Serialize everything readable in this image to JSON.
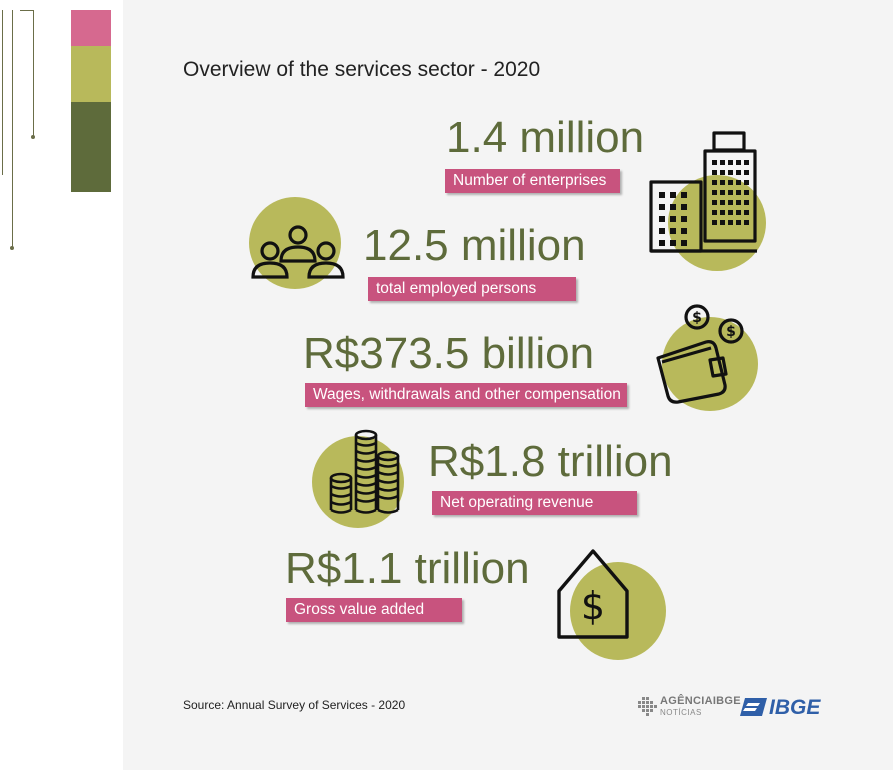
{
  "title": "Overview of the services sector - 2020",
  "colors": {
    "pink": "#c8537e",
    "olive_light": "#b8b95b",
    "olive_dark": "#5e6b3b",
    "panel": "#f4f4f4"
  },
  "stats": [
    {
      "value": "1.4 million",
      "label": "Number of enterprises",
      "icon": "buildings-icon"
    },
    {
      "value": "12.5 million",
      "label": "total employed persons",
      "icon": "people-icon"
    },
    {
      "value": "R$373.5 billion",
      "label": "Wages, withdrawals and other compensation",
      "icon": "wallet-icon"
    },
    {
      "value": "R$1.8 trillion",
      "label": "Net operating revenue",
      "icon": "coin-stacks-icon"
    },
    {
      "value": "R$1.1 trillion",
      "label": "Gross value added",
      "icon": "house-dollar-icon"
    }
  ],
  "source": "Source: Annual Survey of Services - 2020",
  "logos": {
    "agencia_top": "AGÊNCIAIBGE",
    "agencia_bottom": "NOTÍCIAS",
    "ibge": "IBGE"
  }
}
